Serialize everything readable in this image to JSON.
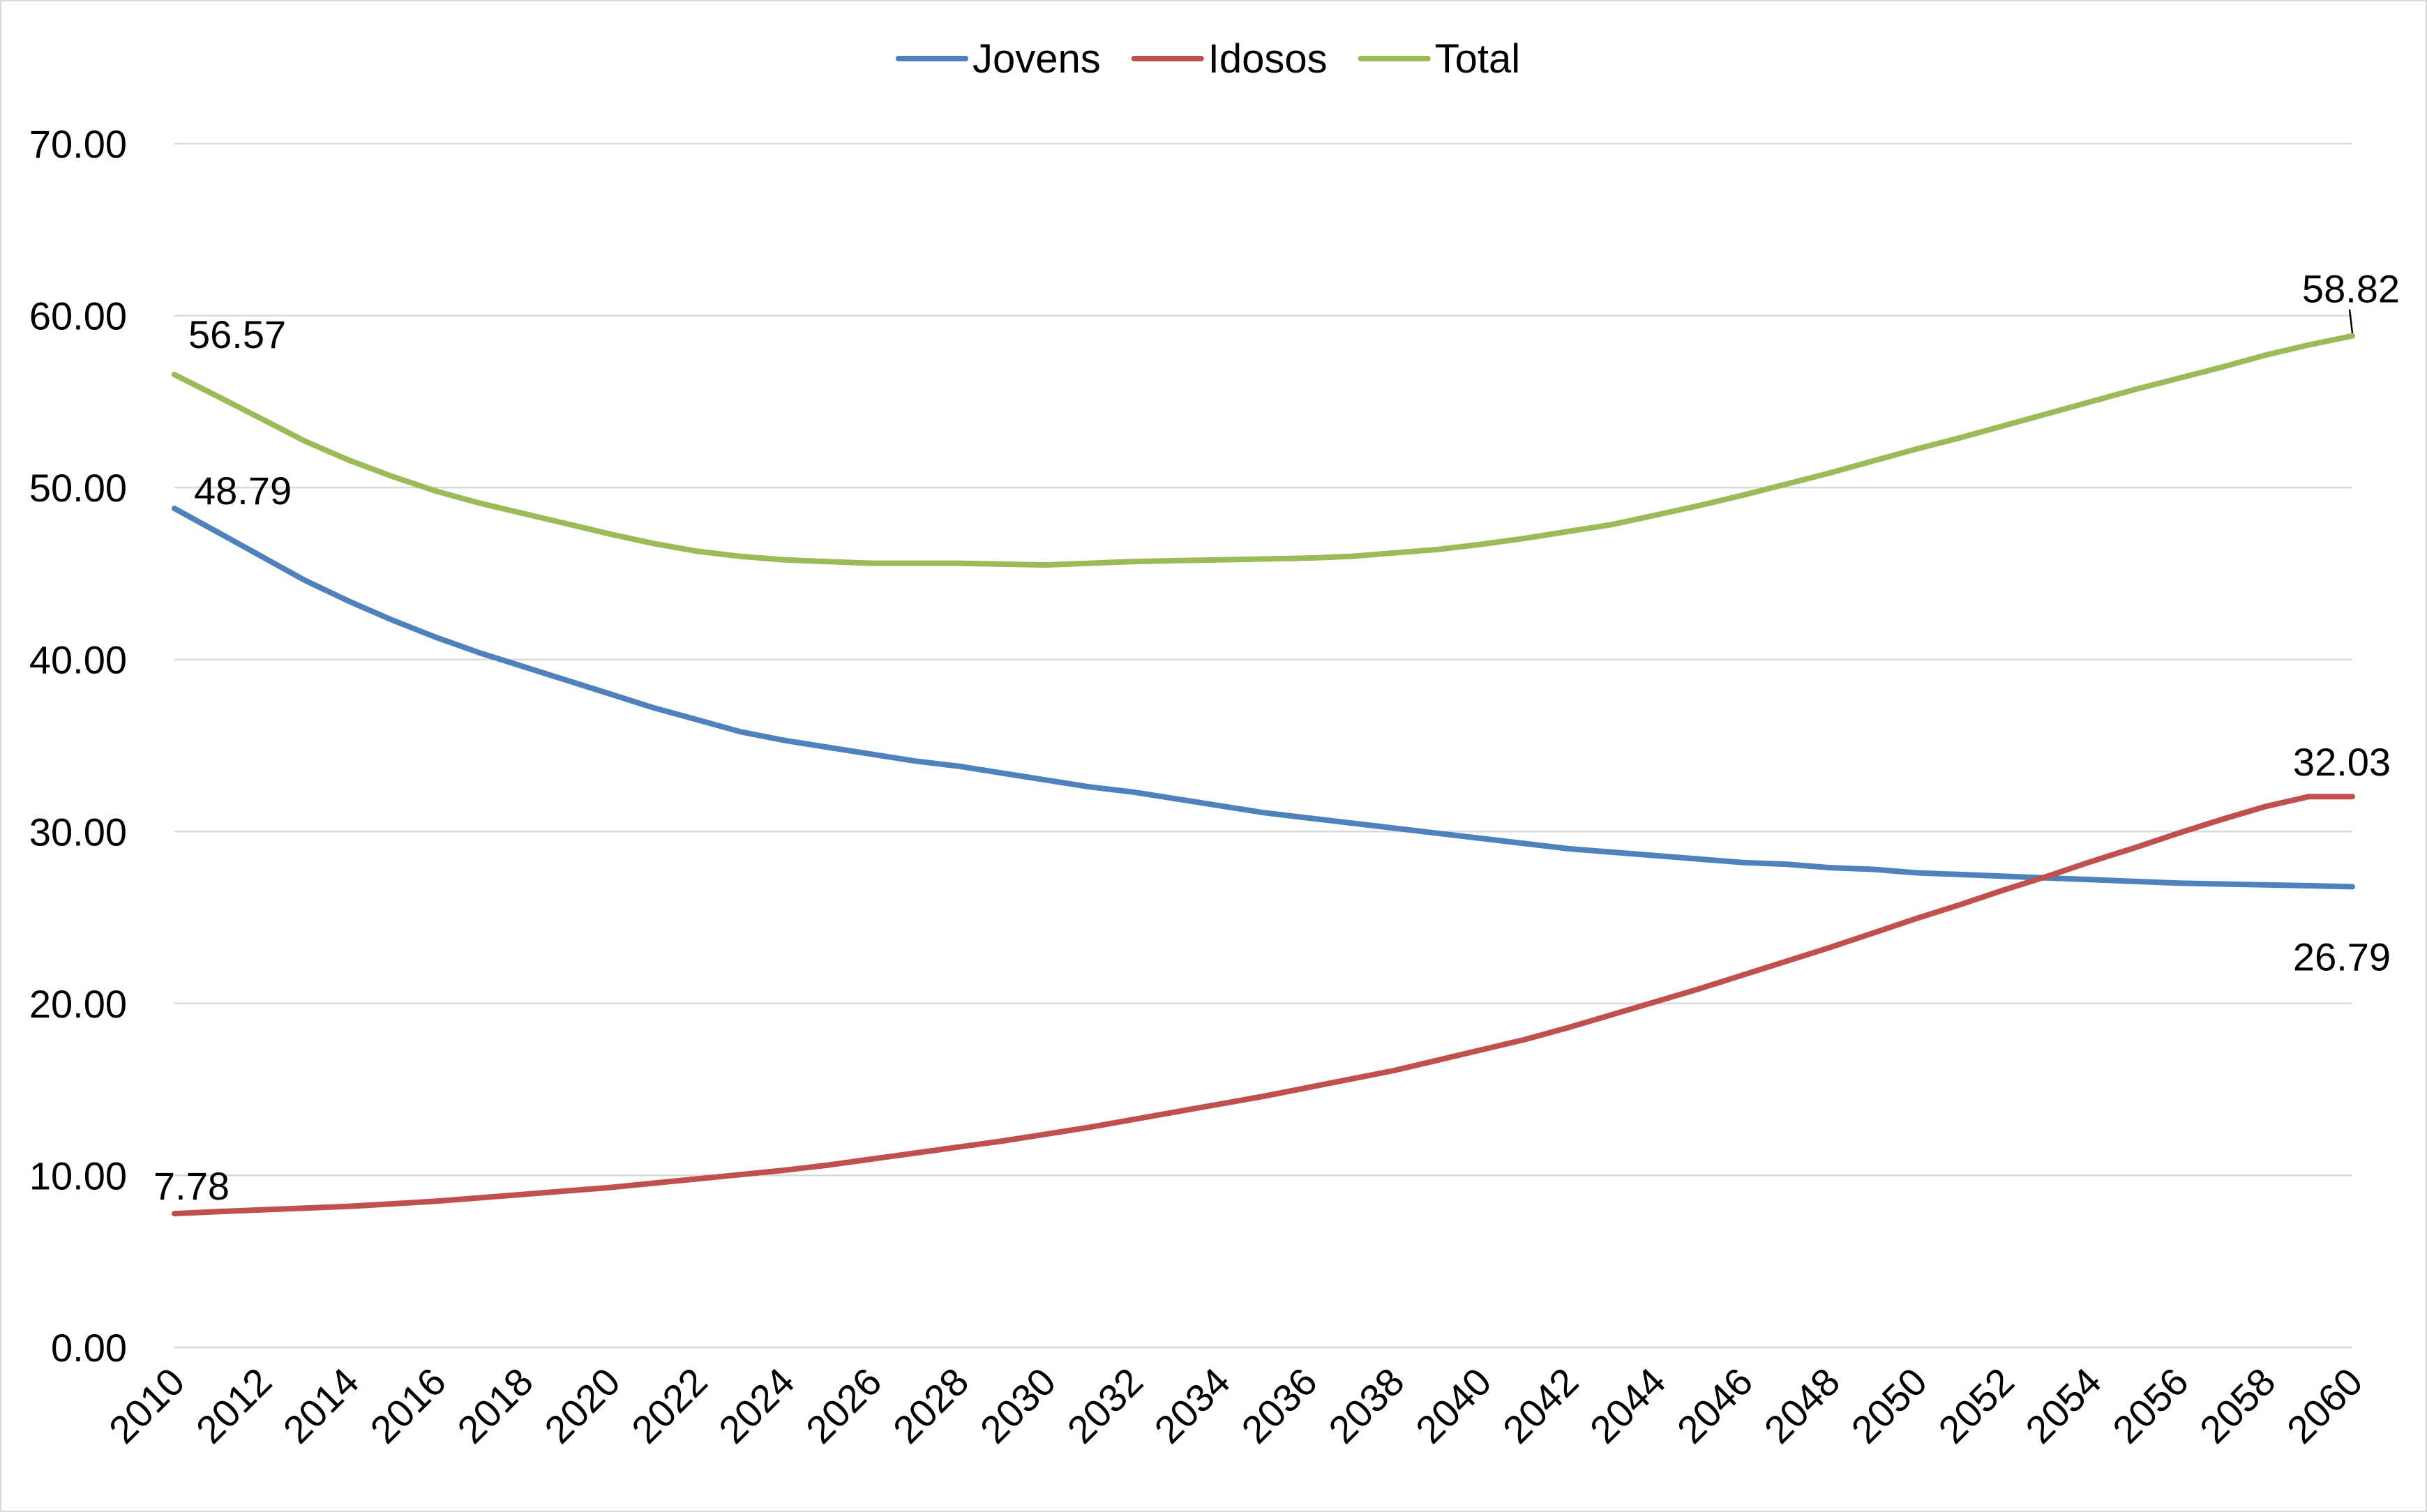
{
  "chart_data": {
    "type": "line",
    "title": "",
    "xlabel": "",
    "ylabel": "",
    "ylim": [
      0,
      70
    ],
    "yticks": [
      "0.00",
      "10.00",
      "20.00",
      "30.00",
      "40.00",
      "50.00",
      "60.00",
      "70.00"
    ],
    "grid": true,
    "legend_position": "top-center",
    "x": [
      2010,
      2011,
      2012,
      2013,
      2014,
      2015,
      2016,
      2017,
      2018,
      2019,
      2020,
      2021,
      2022,
      2023,
      2024,
      2025,
      2026,
      2027,
      2028,
      2029,
      2030,
      2031,
      2032,
      2033,
      2034,
      2035,
      2036,
      2037,
      2038,
      2039,
      2040,
      2041,
      2042,
      2043,
      2044,
      2045,
      2046,
      2047,
      2048,
      2049,
      2050,
      2051,
      2052,
      2053,
      2054,
      2055,
      2056,
      2057,
      2058,
      2059,
      2060
    ],
    "xticks": [
      "2010",
      "2012",
      "2014",
      "2016",
      "2018",
      "2020",
      "2022",
      "2024",
      "2026",
      "2028",
      "2030",
      "2032",
      "2034",
      "2036",
      "2038",
      "2040",
      "2042",
      "2044",
      "2046",
      "2048",
      "2050",
      "2052",
      "2054",
      "2056",
      "2058",
      "2060"
    ],
    "series": [
      {
        "name": "Jovens",
        "color": "#4f81bd",
        "values": [
          48.79,
          47.4,
          46.0,
          44.6,
          43.4,
          42.3,
          41.3,
          40.4,
          39.6,
          38.8,
          38.0,
          37.2,
          36.5,
          35.8,
          35.3,
          34.9,
          34.5,
          34.1,
          33.8,
          33.4,
          33.0,
          32.6,
          32.3,
          31.9,
          31.5,
          31.1,
          30.8,
          30.5,
          30.2,
          29.9,
          29.6,
          29.3,
          29.0,
          28.8,
          28.6,
          28.4,
          28.2,
          28.1,
          27.9,
          27.8,
          27.6,
          27.5,
          27.4,
          27.3,
          27.2,
          27.1,
          27.0,
          26.95,
          26.9,
          26.85,
          26.79
        ]
      },
      {
        "name": "Idosos",
        "color": "#c0504d",
        "values": [
          7.78,
          7.9,
          8.0,
          8.1,
          8.2,
          8.35,
          8.5,
          8.7,
          8.9,
          9.1,
          9.3,
          9.55,
          9.8,
          10.05,
          10.3,
          10.6,
          10.95,
          11.3,
          11.65,
          12.0,
          12.4,
          12.8,
          13.25,
          13.7,
          14.15,
          14.6,
          15.1,
          15.6,
          16.1,
          16.7,
          17.3,
          17.9,
          18.6,
          19.35,
          20.1,
          20.85,
          21.65,
          22.45,
          23.25,
          24.1,
          24.95,
          25.75,
          26.6,
          27.4,
          28.25,
          29.05,
          29.9,
          30.7,
          31.45,
          32.03,
          32.03
        ]
      },
      {
        "name": "Total",
        "color": "#9bbb59",
        "values": [
          56.57,
          55.3,
          54.0,
          52.7,
          51.6,
          50.65,
          49.8,
          49.1,
          48.5,
          47.9,
          47.3,
          46.75,
          46.3,
          46.0,
          45.8,
          45.7,
          45.6,
          45.6,
          45.6,
          45.55,
          45.5,
          45.6,
          45.7,
          45.75,
          45.8,
          45.85,
          45.9,
          46.0,
          46.2,
          46.4,
          46.7,
          47.05,
          47.45,
          47.85,
          48.4,
          48.95,
          49.55,
          50.2,
          50.85,
          51.55,
          52.25,
          52.9,
          53.6,
          54.3,
          55.0,
          55.7,
          56.35,
          57.0,
          57.7,
          58.3,
          58.82
        ]
      }
    ],
    "annotations": [
      {
        "series": "Total",
        "x": 2010,
        "text": "56.57"
      },
      {
        "series": "Jovens",
        "x": 2010,
        "text": "48.79"
      },
      {
        "series": "Idosos",
        "x": 2010,
        "text": "7.78"
      },
      {
        "series": "Total",
        "x": 2060,
        "text": "58.82"
      },
      {
        "series": "Idosos",
        "x": 2060,
        "text": "32.03"
      },
      {
        "series": "Jovens",
        "x": 2060,
        "text": "26.79"
      }
    ]
  }
}
